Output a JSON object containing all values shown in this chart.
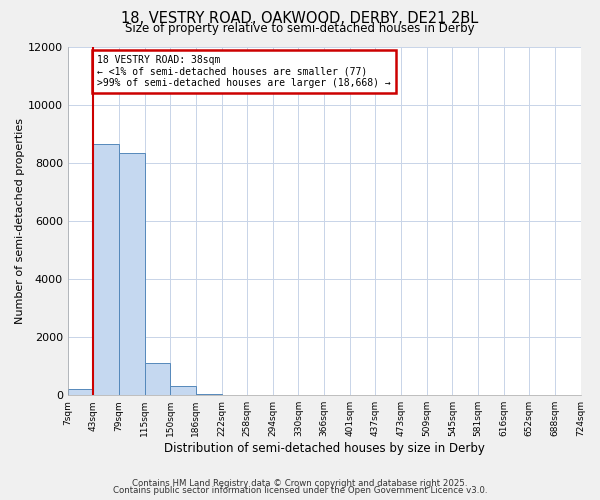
{
  "title1": "18, VESTRY ROAD, OAKWOOD, DERBY, DE21 2BL",
  "title2": "Size of property relative to semi-detached houses in Derby",
  "xlabel": "Distribution of semi-detached houses by size in Derby",
  "ylabel": "Number of semi-detached properties",
  "bin_labels": [
    "7sqm",
    "43sqm",
    "79sqm",
    "115sqm",
    "150sqm",
    "186sqm",
    "222sqm",
    "258sqm",
    "294sqm",
    "330sqm",
    "366sqm",
    "401sqm",
    "437sqm",
    "473sqm",
    "509sqm",
    "545sqm",
    "581sqm",
    "616sqm",
    "652sqm",
    "688sqm",
    "724sqm"
  ],
  "bar_heights": [
    200,
    8650,
    8350,
    1100,
    320,
    50,
    0,
    0,
    0,
    0,
    0,
    0,
    0,
    0,
    0,
    0,
    0,
    0,
    0,
    0
  ],
  "bar_color": "#c5d8f0",
  "bar_edge_color": "#5588bb",
  "subject_line_color": "#cc0000",
  "annotation_title": "18 VESTRY ROAD: 38sqm",
  "annotation_line1": "← <1% of semi-detached houses are smaller (77)",
  "annotation_line2": ">99% of semi-detached houses are larger (18,668) →",
  "annotation_box_color": "#cc0000",
  "ylim": [
    0,
    12000
  ],
  "yticks": [
    0,
    2000,
    4000,
    6000,
    8000,
    10000,
    12000
  ],
  "footer1": "Contains HM Land Registry data © Crown copyright and database right 2025.",
  "footer2": "Contains public sector information licensed under the Open Government Licence v3.0.",
  "bg_color": "#f0f0f0",
  "plot_bg_color": "#ffffff",
  "grid_color": "#c8d4e8"
}
